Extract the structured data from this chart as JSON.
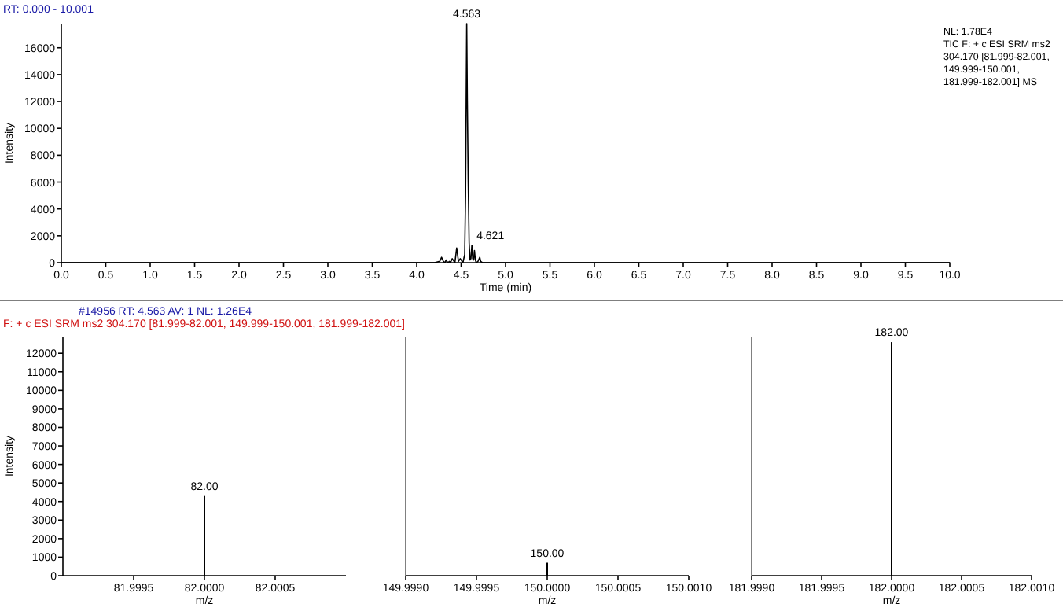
{
  "chart_data": [
    {
      "type": "line",
      "title": "RT: 0.000 - 10.001",
      "xlabel": "Time (min)",
      "ylabel": "Intensity",
      "series": [
        {
          "color": "#000000",
          "x": [
            0,
            4.2,
            4.26,
            4.28,
            4.3,
            4.32,
            4.33,
            4.35,
            4.37,
            4.38,
            4.4,
            4.43,
            4.45,
            4.47,
            4.49,
            4.52,
            4.54,
            4.55,
            4.557,
            4.563,
            4.57,
            4.58,
            4.59,
            4.6,
            4.61,
            4.621,
            4.63,
            4.64,
            4.65,
            4.66,
            4.67,
            4.69,
            4.71,
            4.72,
            4.74,
            4.78,
            10
          ],
          "values": [
            0,
            0,
            100,
            400,
            100,
            0,
            200,
            0,
            100,
            0,
            300,
            0,
            1100,
            100,
            300,
            0,
            600,
            5000,
            12000,
            17800,
            12000,
            6000,
            1500,
            200,
            300,
            1300,
            300,
            200,
            900,
            200,
            0,
            100,
            400,
            100,
            0,
            0,
            0
          ]
        }
      ],
      "xlim": [
        0,
        10.0
      ],
      "xticks": [
        {
          "value": 0,
          "label": "0.0"
        },
        {
          "value": 0.5,
          "label": "0.5"
        },
        {
          "value": 1,
          "label": "1.0"
        },
        {
          "value": 1.5,
          "label": "1.5"
        },
        {
          "value": 2,
          "label": "2.0"
        },
        {
          "value": 2.5,
          "label": "2.5"
        },
        {
          "value": 3,
          "label": "3.0"
        },
        {
          "value": 3.5,
          "label": "3.5"
        },
        {
          "value": 4,
          "label": "4.0"
        },
        {
          "value": 4.5,
          "label": "4.5"
        },
        {
          "value": 5,
          "label": "5.0"
        },
        {
          "value": 5.5,
          "label": "5.5"
        },
        {
          "value": 6,
          "label": "6.0"
        },
        {
          "value": 6.5,
          "label": "6.5"
        },
        {
          "value": 7,
          "label": "7.0"
        },
        {
          "value": 7.5,
          "label": "7.5"
        },
        {
          "value": 8,
          "label": "8.0"
        },
        {
          "value": 8.5,
          "label": "8.5"
        },
        {
          "value": 9,
          "label": "9.0"
        },
        {
          "value": 9.5,
          "label": "9.5"
        },
        {
          "value": 10,
          "label": "10.0"
        }
      ],
      "ylim": [
        0,
        17800
      ],
      "yticks": [
        0,
        2000,
        4000,
        6000,
        8000,
        10000,
        12000,
        14000,
        16000
      ],
      "annotations": [
        {
          "text": "4.563",
          "x": 4.563,
          "y": 17800
        },
        {
          "text": "4.621",
          "x": 4.621,
          "y": 1300
        },
        "NL: 1.78E4",
        "TIC F: + c ESI SRM ms2 304.170 [81.999-82.001, 149.999-150.001, 181.999-182.001] MS"
      ]
    },
    {
      "type": "bar",
      "title": "#14956  RT: 4.563  AV: 1  NL: 1.26E4",
      "subtitle": "F: + c ESI SRM ms2 304.170 [81.999-82.001, 149.999-150.001, 181.999-182.001]",
      "xlabel": "m/z",
      "ylabel": "Intensity",
      "series": [
        {
          "color": "#000000",
          "x": [
            82.0
          ],
          "values": [
            4300
          ]
        }
      ],
      "xlim": [
        81.999,
        82.001
      ],
      "xticks": [
        {
          "value": 81.9995,
          "label": "81.9995"
        },
        {
          "value": 82.0,
          "label": "82.0000"
        },
        {
          "value": 82.0005,
          "label": "82.0005"
        }
      ],
      "ylim": [
        0,
        12900
      ],
      "yticks": [
        0,
        1000,
        2000,
        3000,
        4000,
        5000,
        6000,
        7000,
        8000,
        9000,
        10000,
        11000,
        12000
      ],
      "annotations": [
        {
          "text": "82.00",
          "x": 82.0,
          "y": 4300
        }
      ]
    },
    {
      "type": "bar",
      "xlabel": "m/z",
      "tick_labels": "x",
      "series": [
        {
          "color": "#000000",
          "x": [
            150.0
          ],
          "values": [
            700
          ]
        }
      ],
      "xlim": [
        149.999,
        150.001
      ],
      "xticks": [
        {
          "value": 149.999,
          "label": "149.9990"
        },
        {
          "value": 149.9995,
          "label": "149.9995"
        },
        {
          "value": 150.0,
          "label": "150.0000"
        },
        {
          "value": 150.0005,
          "label": "150.0005"
        },
        {
          "value": 150.001,
          "label": "150.0010"
        }
      ],
      "ylim": [
        0,
        12900
      ],
      "annotations": [
        {
          "text": "150.00",
          "x": 150.0,
          "y": 700
        }
      ]
    },
    {
      "type": "bar",
      "xlabel": "m/z",
      "tick_labels": "x",
      "series": [
        {
          "color": "#000000",
          "x": [
            182.0
          ],
          "values": [
            12600
          ]
        }
      ],
      "xlim": [
        181.999,
        182.001
      ],
      "xticks": [
        {
          "value": 181.999,
          "label": "181.9990"
        },
        {
          "value": 181.9995,
          "label": "181.9995"
        },
        {
          "value": 182.0,
          "label": "182.0000"
        },
        {
          "value": 182.0005,
          "label": "182.0005"
        },
        {
          "value": 182.001,
          "label": "182.0010"
        }
      ],
      "ylim": [
        0,
        12900
      ],
      "annotations": [
        {
          "text": "182.00",
          "x": 182.0,
          "y": 12600
        }
      ]
    }
  ]
}
